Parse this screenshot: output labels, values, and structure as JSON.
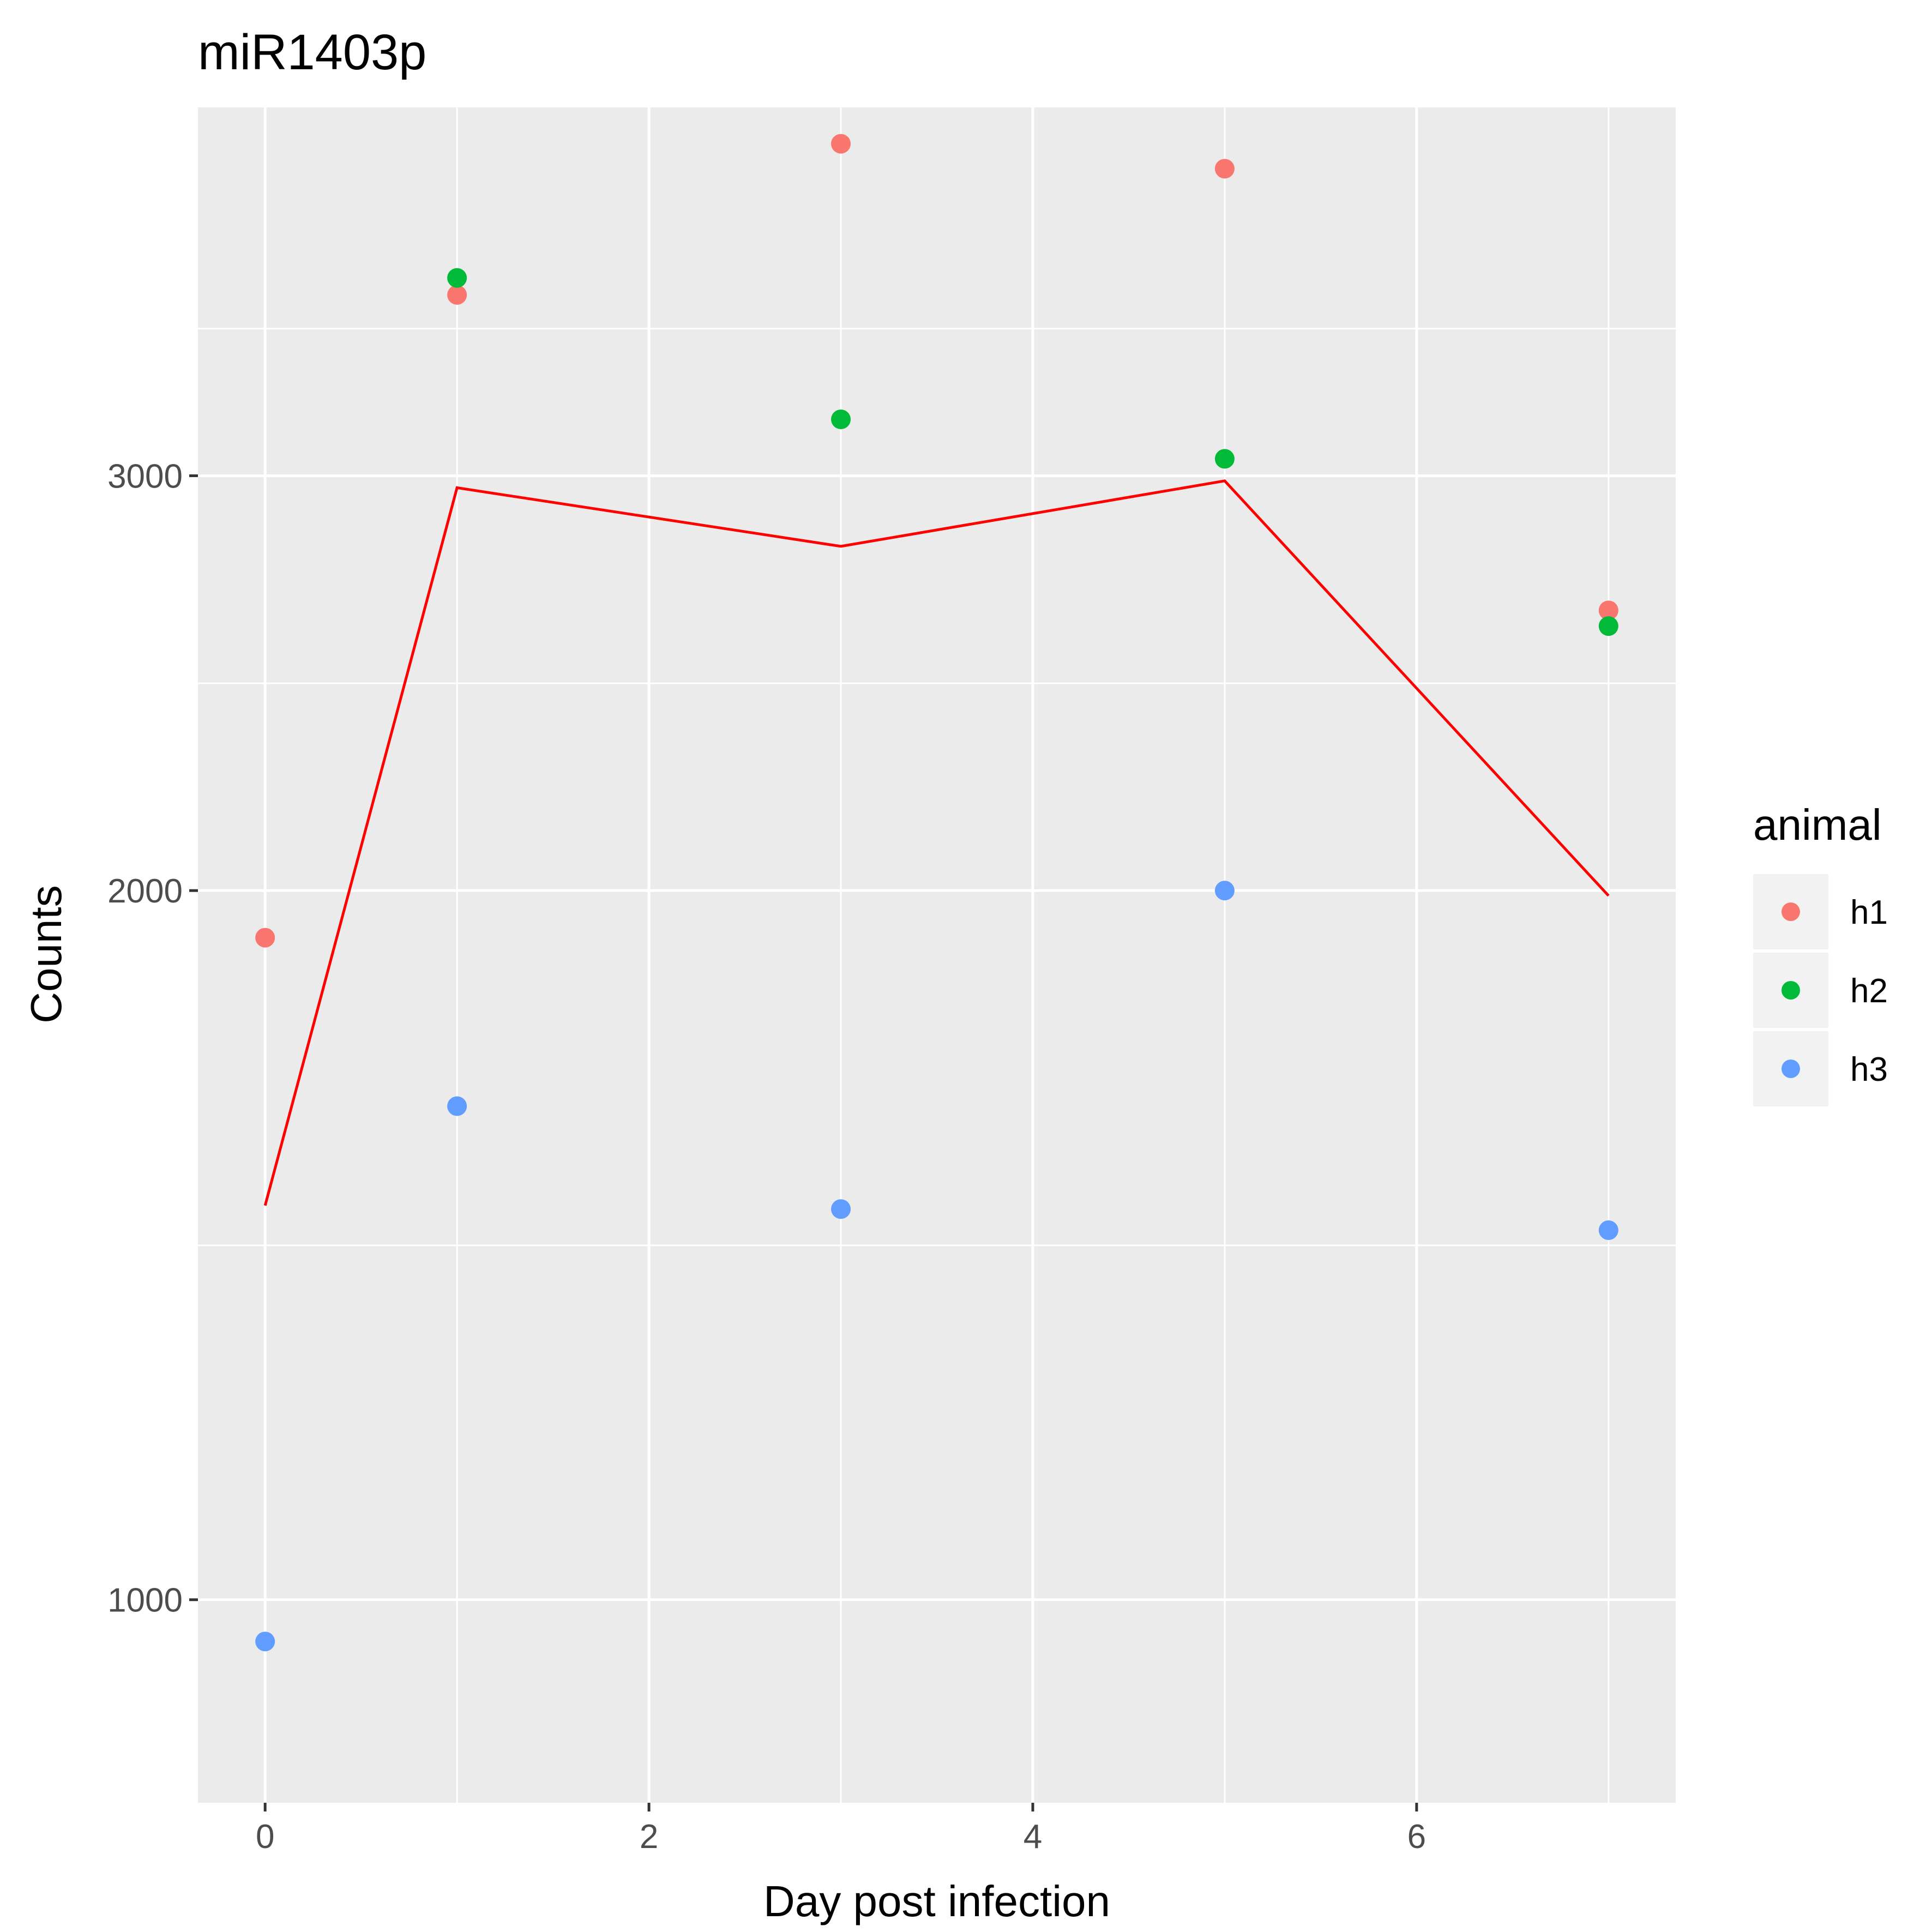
{
  "chart_data": {
    "type": "scatter",
    "title": "miR1403p",
    "xlabel": "Day post infection",
    "ylabel": "Counts",
    "y_scale": "log",
    "xlim": [
      -0.35,
      7.35
    ],
    "ylim": [
      820,
      4300
    ],
    "x_ticks": [
      0,
      2,
      4,
      6
    ],
    "x_tick_labels": [
      "0",
      "2",
      "4",
      "6"
    ],
    "y_ticks": [
      1000,
      2000,
      3000
    ],
    "y_tick_labels": [
      "1000",
      "2000",
      "3000"
    ],
    "y_minor_breaks": [
      1414,
      2449,
      3464
    ],
    "x_minor_breaks": [
      1,
      3,
      5,
      7
    ],
    "grid": true,
    "legend": {
      "title": "animal",
      "position": "right",
      "entries": [
        {
          "name": "h1",
          "color": "#F8766D"
        },
        {
          "name": "h2",
          "color": "#00BA38"
        },
        {
          "name": "h3",
          "color": "#619CFF"
        }
      ]
    },
    "series": [
      {
        "name": "h1",
        "color": "#F8766D",
        "x": [
          0,
          1,
          3,
          5,
          7
        ],
        "y": [
          1910,
          3580,
          4150,
          4050,
          2630
        ]
      },
      {
        "name": "h2",
        "color": "#00BA38",
        "x": [
          1,
          3,
          5,
          7
        ],
        "y": [
          3640,
          3170,
          3050,
          2590
        ]
      },
      {
        "name": "h3",
        "color": "#619CFF",
        "x": [
          0,
          1,
          3,
          5,
          7
        ],
        "y": [
          960,
          1620,
          1465,
          2000,
          1435
        ]
      }
    ],
    "lines": [
      {
        "color": "#FF0000",
        "x": [
          0,
          1,
          3,
          5,
          7
        ],
        "y": [
          1470,
          2965,
          2800,
          2985,
          1990
        ]
      }
    ]
  }
}
